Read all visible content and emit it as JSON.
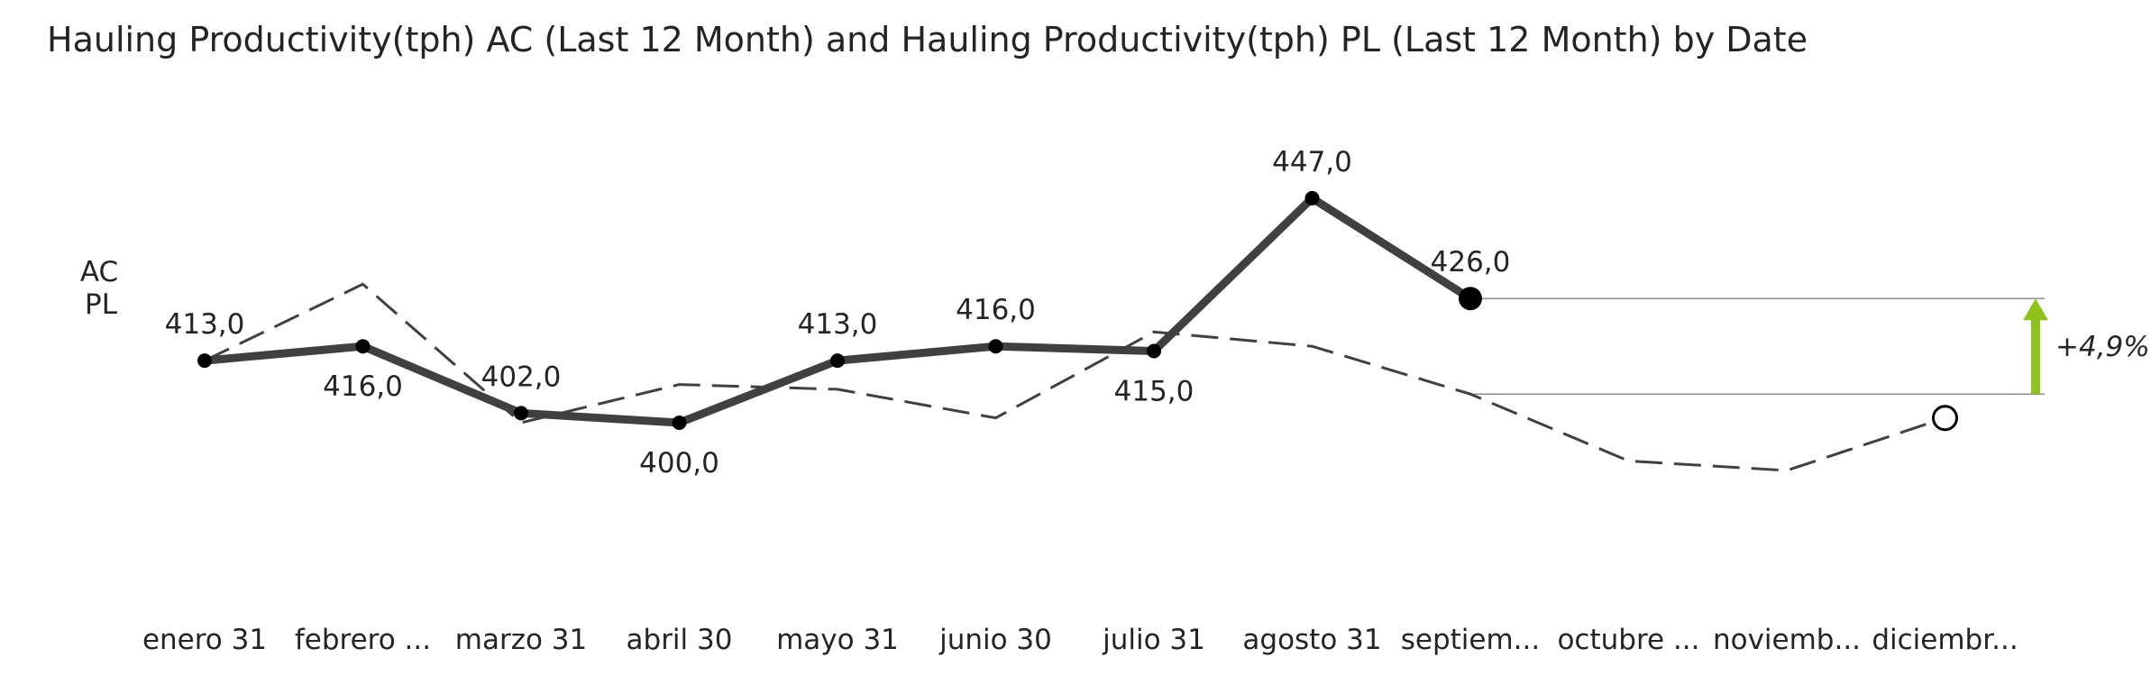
{
  "title": "Hauling Productivity(tph) AC (Last 12 Month) and Hauling Productivity(tph) PL (Last 12 Month) by Date",
  "chart_data": {
    "type": "line",
    "title": "Hauling Productivity(tph) AC (Last 12 Month) and Hauling Productivity(tph) PL (Last 12 Month) by Date",
    "categories": [
      "enero 31",
      "febrero ...",
      "marzo 31",
      "abril 30",
      "mayo 31",
      "junio 30",
      "julio 31",
      "agosto 31",
      "septiem...",
      "octubre ...",
      "noviemb...",
      "diciembr..."
    ],
    "series": [
      {
        "name": "AC",
        "style": "solid",
        "color": "#404040",
        "values": [
          413.0,
          416.0,
          402.0,
          400.0,
          413.0,
          416.0,
          415.0,
          447.0,
          426.0,
          null,
          null,
          null
        ],
        "labels": [
          "413,0",
          "416,0",
          "402,0",
          "400,0",
          "413,0",
          "416,0",
          "415,0",
          "447,0",
          "426,0",
          "",
          "",
          ""
        ]
      },
      {
        "name": "PL",
        "style": "dashed",
        "color": "#404040",
        "values": [
          413.0,
          429.0,
          400.0,
          408.0,
          407.0,
          401.0,
          419.0,
          416.0,
          406.0,
          392.0,
          390.0,
          401.0
        ]
      }
    ],
    "variance": {
      "label": "+4,9%",
      "color": "#8dc21f",
      "from": "PL",
      "to": "AC",
      "at": "septiem..."
    },
    "ylim": [
      340,
      470
    ],
    "grid": false,
    "legend": "left"
  }
}
